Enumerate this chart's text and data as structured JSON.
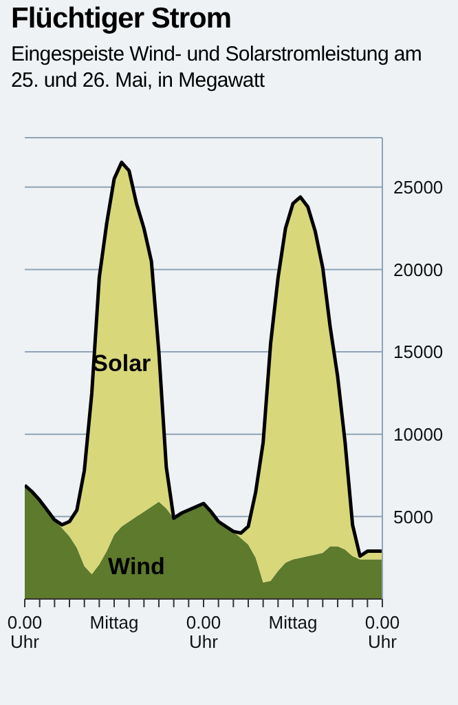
{
  "chart_data": {
    "type": "area",
    "title": "Flüchtiger Strom",
    "subtitle": "Eingespeiste Wind- und Solarstromleistung am 25. und 26. Mai, in Megawatt",
    "stacked": true,
    "categories": [
      "0.00 Uhr",
      null,
      null,
      null,
      null,
      null,
      null,
      null,
      null,
      null,
      null,
      null,
      "Mittag",
      null,
      null,
      null,
      null,
      null,
      null,
      null,
      null,
      null,
      null,
      null,
      "0.00 Uhr",
      null,
      null,
      null,
      null,
      null,
      null,
      null,
      null,
      null,
      null,
      null,
      "Mittag",
      null,
      null,
      null,
      null,
      null,
      null,
      null,
      null,
      null,
      null,
      null,
      "0.00 Uhr"
    ],
    "series": [
      {
        "name": "Wind",
        "color": "#5e7a2c",
        "values": [
          6900,
          6500,
          6000,
          5400,
          4800,
          4300,
          3800,
          3100,
          2000,
          1500,
          2100,
          2900,
          3900,
          4400,
          4700,
          5000,
          5300,
          5600,
          5900,
          5500,
          4900,
          5200,
          5400,
          5600,
          5800,
          5300,
          4700,
          4400,
          4100,
          3700,
          3300,
          2500,
          1000,
          1100,
          1700,
          2200,
          2400,
          2500,
          2600,
          2700,
          2800,
          3200,
          3200,
          3000,
          2600,
          2400,
          2400,
          2400,
          2400
        ]
      },
      {
        "name": "Solar",
        "color": "#d8d77a",
        "values": [
          0,
          0,
          0,
          0,
          0,
          200,
          900,
          2300,
          5800,
          11000,
          17400,
          19900,
          21600,
          22100,
          21300,
          19000,
          17200,
          14900,
          9100,
          2500,
          0,
          0,
          0,
          0,
          0,
          0,
          0,
          0,
          0,
          300,
          1100,
          4000,
          8500,
          14400,
          17800,
          20300,
          21600,
          21900,
          21200,
          19600,
          17300,
          13300,
          10300,
          6500,
          1900,
          200,
          500,
          500,
          500
        ]
      }
    ],
    "ylim": [
      0,
      28000
    ],
    "yticks": [
      5000,
      10000,
      15000,
      20000,
      25000
    ],
    "grid": "y"
  }
}
